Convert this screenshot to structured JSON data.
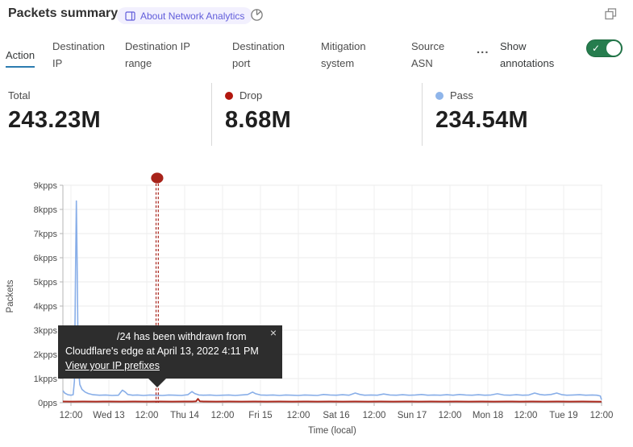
{
  "header": {
    "title": "Packets summary",
    "about_badge": "About Network Analytics",
    "icons": {
      "book_icon": "open-book",
      "time_icon": "pie-clock",
      "popout_icon": "overlapping-squares"
    }
  },
  "tabs": [
    {
      "label": "Action",
      "active": true
    },
    {
      "label": "Destination IP",
      "active": false
    },
    {
      "label": "Destination IP range",
      "active": false
    },
    {
      "label": "Destination port",
      "active": false
    },
    {
      "label": "Mitigation system",
      "active": false
    },
    {
      "label": "Source ASN",
      "active": false
    }
  ],
  "more_tabs_label": "...",
  "show_annotations": {
    "label": "Show annotations",
    "enabled": true,
    "toggle_color": "#267d4e",
    "check": "✓"
  },
  "colors": {
    "accent_tab_underline": "#2c7cb0",
    "pass_blue": "#88aee8",
    "drop_red": "#ae2c20",
    "annotation_red": "#a8231a"
  },
  "stats": [
    {
      "label": "Total",
      "value": "243.23M",
      "dot_color": null
    },
    {
      "label": "Drop",
      "value": "8.68M",
      "dot_color": "#b2170e"
    },
    {
      "label": "Pass",
      "value": "234.54M",
      "dot_color": "#8fb5ea"
    }
  ],
  "tooltip": {
    "line1": "/24 has been withdrawn from",
    "line2": "Cloudflare's edge at April 13, 2022 4:11 PM",
    "link": "View your IP prefixes",
    "close": "×"
  },
  "chart_data": {
    "type": "line",
    "title": "Packets summary",
    "xlabel": "Time (local)",
    "ylabel": "Packets",
    "grid": true,
    "legend_position": "none",
    "y_ticks": [
      "9kpps",
      "8kpps",
      "7kpps",
      "6kpps",
      "5kpps",
      "4kpps",
      "3kpps",
      "2kpps",
      "1kpps",
      "0pps"
    ],
    "ylim_kpps": [
      0,
      9
    ],
    "x_ticks": [
      "12:00",
      "Wed 13",
      "12:00",
      "Thu 14",
      "12:00",
      "Fri 15",
      "12:00",
      "Sat 16",
      "12:00",
      "Sun 17",
      "12:00",
      "Mon 18",
      "12:00",
      "Tue 19",
      "12:00"
    ],
    "x_tick_interval_hours": 12,
    "x_range_hours": [
      -2.55,
      168
    ],
    "annotation": {
      "x_hours": 27.3,
      "label_date": "April 13, 2022 4:11 PM",
      "color": "#a8231a",
      "style": "double-dashed-vertical",
      "marker": "dot"
    },
    "series": [
      {
        "name": "Pass",
        "color": "#88aee8",
        "width": 1.6,
        "unit": "kpps",
        "points": [
          [
            -2.55,
            0.5
          ],
          [
            -2,
            0.4
          ],
          [
            -1,
            0.33
          ],
          [
            0,
            0.31
          ],
          [
            0.7,
            0.33
          ],
          [
            1.1,
            0.9
          ],
          [
            1.45,
            5.5
          ],
          [
            1.7,
            8.35
          ],
          [
            1.95,
            6.0
          ],
          [
            2.3,
            1.5
          ],
          [
            2.8,
            0.75
          ],
          [
            3.5,
            0.55
          ],
          [
            4.5,
            0.44
          ],
          [
            5.5,
            0.38
          ],
          [
            7,
            0.33
          ],
          [
            9,
            0.31
          ],
          [
            11,
            0.32
          ],
          [
            13,
            0.3
          ],
          [
            15,
            0.31
          ],
          [
            16.3,
            0.52
          ],
          [
            17.2,
            0.44
          ],
          [
            18,
            0.34
          ],
          [
            19.5,
            0.31
          ],
          [
            21,
            0.32
          ],
          [
            23,
            0.3
          ],
          [
            25,
            0.32
          ],
          [
            27,
            0.31
          ],
          [
            29,
            0.3
          ],
          [
            31,
            0.32
          ],
          [
            33,
            0.31
          ],
          [
            35,
            0.3
          ],
          [
            37,
            0.33
          ],
          [
            38.3,
            0.46
          ],
          [
            39.2,
            0.38
          ],
          [
            40.5,
            0.32
          ],
          [
            42,
            0.31
          ],
          [
            44,
            0.32
          ],
          [
            46,
            0.3
          ],
          [
            48,
            0.31
          ],
          [
            50,
            0.32
          ],
          [
            52,
            0.3
          ],
          [
            54,
            0.32
          ],
          [
            56,
            0.34
          ],
          [
            57.5,
            0.44
          ],
          [
            58.5,
            0.37
          ],
          [
            60,
            0.32
          ],
          [
            62,
            0.31
          ],
          [
            64,
            0.32
          ],
          [
            66,
            0.3
          ],
          [
            68,
            0.32
          ],
          [
            70,
            0.31
          ],
          [
            72,
            0.3
          ],
          [
            74,
            0.32
          ],
          [
            76,
            0.31
          ],
          [
            78,
            0.3
          ],
          [
            80,
            0.34
          ],
          [
            82,
            0.32
          ],
          [
            84,
            0.31
          ],
          [
            86,
            0.33
          ],
          [
            88,
            0.31
          ],
          [
            90,
            0.4
          ],
          [
            91.5,
            0.34
          ],
          [
            93,
            0.31
          ],
          [
            95,
            0.32
          ],
          [
            97,
            0.31
          ],
          [
            99,
            0.36
          ],
          [
            101,
            0.32
          ],
          [
            103,
            0.31
          ],
          [
            105,
            0.33
          ],
          [
            107,
            0.31
          ],
          [
            109,
            0.32
          ],
          [
            111,
            0.34
          ],
          [
            113,
            0.31
          ],
          [
            115,
            0.32
          ],
          [
            117,
            0.31
          ],
          [
            119,
            0.33
          ],
          [
            121,
            0.31
          ],
          [
            123,
            0.34
          ],
          [
            125,
            0.32
          ],
          [
            127,
            0.31
          ],
          [
            129,
            0.33
          ],
          [
            131,
            0.31
          ],
          [
            133,
            0.32
          ],
          [
            135,
            0.37
          ],
          [
            137,
            0.32
          ],
          [
            139,
            0.31
          ],
          [
            141,
            0.33
          ],
          [
            143,
            0.31
          ],
          [
            145,
            0.32
          ],
          [
            146.8,
            0.4
          ],
          [
            148.5,
            0.34
          ],
          [
            150,
            0.32
          ],
          [
            152,
            0.34
          ],
          [
            153.8,
            0.4
          ],
          [
            155.5,
            0.33
          ],
          [
            157,
            0.31
          ],
          [
            159,
            0.32
          ],
          [
            161,
            0.33
          ],
          [
            163,
            0.31
          ],
          [
            165,
            0.32
          ],
          [
            166.5,
            0.31
          ],
          [
            167.6,
            0.28
          ],
          [
            168,
            0.12
          ]
        ]
      },
      {
        "name": "Drop",
        "color": "#ae2c20",
        "width": 2,
        "unit": "kpps",
        "points": [
          [
            -2.55,
            0.05
          ],
          [
            0,
            0.045
          ],
          [
            4,
            0.05
          ],
          [
            8,
            0.045
          ],
          [
            12,
            0.05
          ],
          [
            16,
            0.045
          ],
          [
            20,
            0.05
          ],
          [
            24,
            0.045
          ],
          [
            28,
            0.05
          ],
          [
            32,
            0.045
          ],
          [
            36,
            0.05
          ],
          [
            38.5,
            0.05
          ],
          [
            39.6,
            0.06
          ],
          [
            40.2,
            0.16
          ],
          [
            40.8,
            0.06
          ],
          [
            42,
            0.05
          ],
          [
            46,
            0.045
          ],
          [
            50,
            0.05
          ],
          [
            54,
            0.045
          ],
          [
            58,
            0.05
          ],
          [
            62,
            0.045
          ],
          [
            66,
            0.05
          ],
          [
            70,
            0.045
          ],
          [
            74,
            0.05
          ],
          [
            78,
            0.045
          ],
          [
            82,
            0.05
          ],
          [
            86,
            0.045
          ],
          [
            90,
            0.05
          ],
          [
            94,
            0.045
          ],
          [
            98,
            0.05
          ],
          [
            102,
            0.045
          ],
          [
            106,
            0.05
          ],
          [
            110,
            0.045
          ],
          [
            114,
            0.05
          ],
          [
            118,
            0.045
          ],
          [
            122,
            0.05
          ],
          [
            126,
            0.045
          ],
          [
            130,
            0.05
          ],
          [
            134,
            0.045
          ],
          [
            138,
            0.05
          ],
          [
            142,
            0.045
          ],
          [
            146,
            0.05
          ],
          [
            150,
            0.045
          ],
          [
            154,
            0.05
          ],
          [
            158,
            0.045
          ],
          [
            162,
            0.05
          ],
          [
            165,
            0.045
          ],
          [
            168,
            0.04
          ]
        ]
      }
    ]
  }
}
